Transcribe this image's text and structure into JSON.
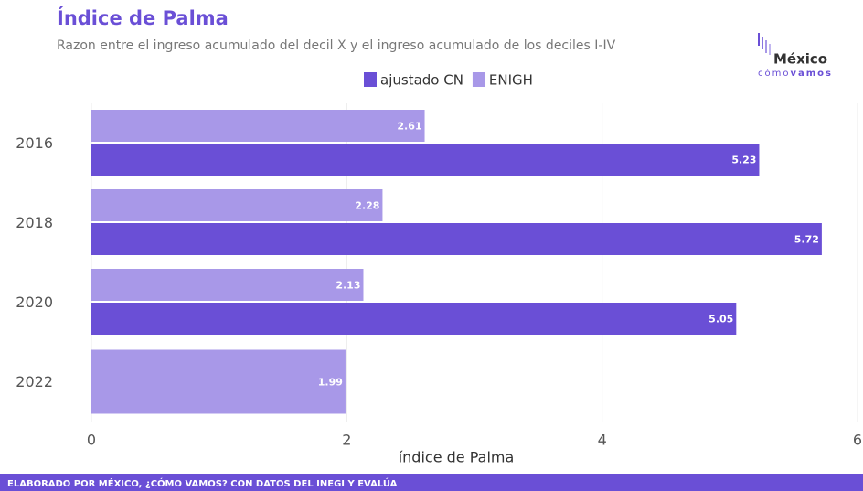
{
  "chart_data": {
    "type": "barh",
    "title": "Índice de Palma",
    "subtitle": "Razon entre el ingreso acumulado del decil X y el ingreso acumulado de los deciles I-IV",
    "categories": [
      "2016",
      "2018",
      "2020",
      "2022"
    ],
    "series": [
      {
        "name": "ajustado CN",
        "color": "#6a4fd6",
        "values": [
          5.23,
          5.72,
          5.05,
          null
        ]
      },
      {
        "name": "ENIGH",
        "color": "#a898e8",
        "values": [
          2.61,
          2.28,
          2.13,
          1.99
        ]
      }
    ],
    "xlim": [
      0,
      6
    ],
    "xticks": [
      0,
      2,
      4,
      6
    ],
    "grid": true,
    "xlabel": "índice de Palma",
    "legend": "top",
    "logo": {
      "name": "México",
      "tagline_1": "cómo",
      "tagline_2": "vamos"
    },
    "footer": "ELABORADO POR MÉXICO, ¿CÓMO VAMOS? CON DATOS DEL INEGI Y EVALÚA"
  }
}
